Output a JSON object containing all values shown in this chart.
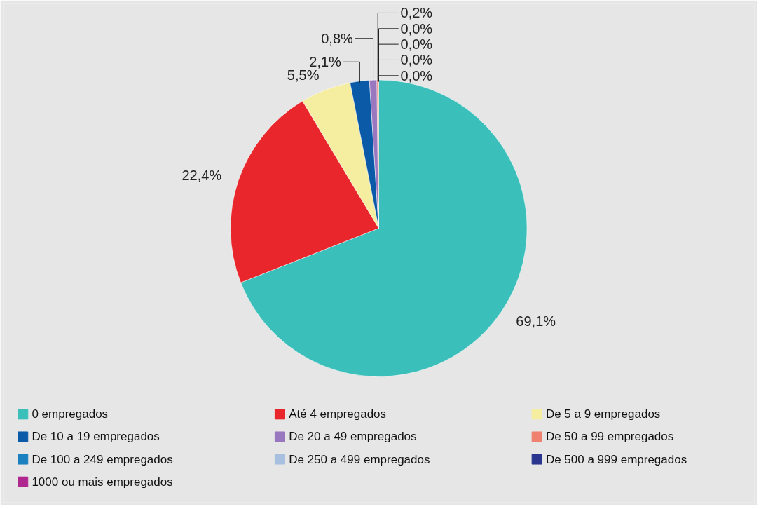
{
  "chart_data": {
    "type": "pie",
    "categories": [
      "0 empregados",
      "Até 4 empregados",
      "De 5 a 9 empregados",
      "De 10 a 19 empregados",
      "De 20 a 49 empregados",
      "De 50 a 99 empregados",
      "De 100 a 249 empregados",
      "De 250 a 499 empregados",
      "De 500 a 999 empregados",
      "1000 ou mais empregados"
    ],
    "values": [
      69.1,
      22.4,
      5.5,
      2.1,
      0.8,
      0.2,
      0.0,
      0.0,
      0.0,
      0.0
    ],
    "value_labels": [
      "69,1%",
      "22,4%",
      "5,5%",
      "2,1%",
      "0,8%",
      "0,2%",
      "0,0%",
      "0,0%",
      "0,0%",
      "0,0%"
    ],
    "colors": [
      "#3bbfba",
      "#e8262b",
      "#f5eea0",
      "#0a5aa8",
      "#9a78c0",
      "#f08070",
      "#1a80c0",
      "#a8c0e0",
      "#2a3590",
      "#b0288f"
    ],
    "legend": "bottom"
  }
}
